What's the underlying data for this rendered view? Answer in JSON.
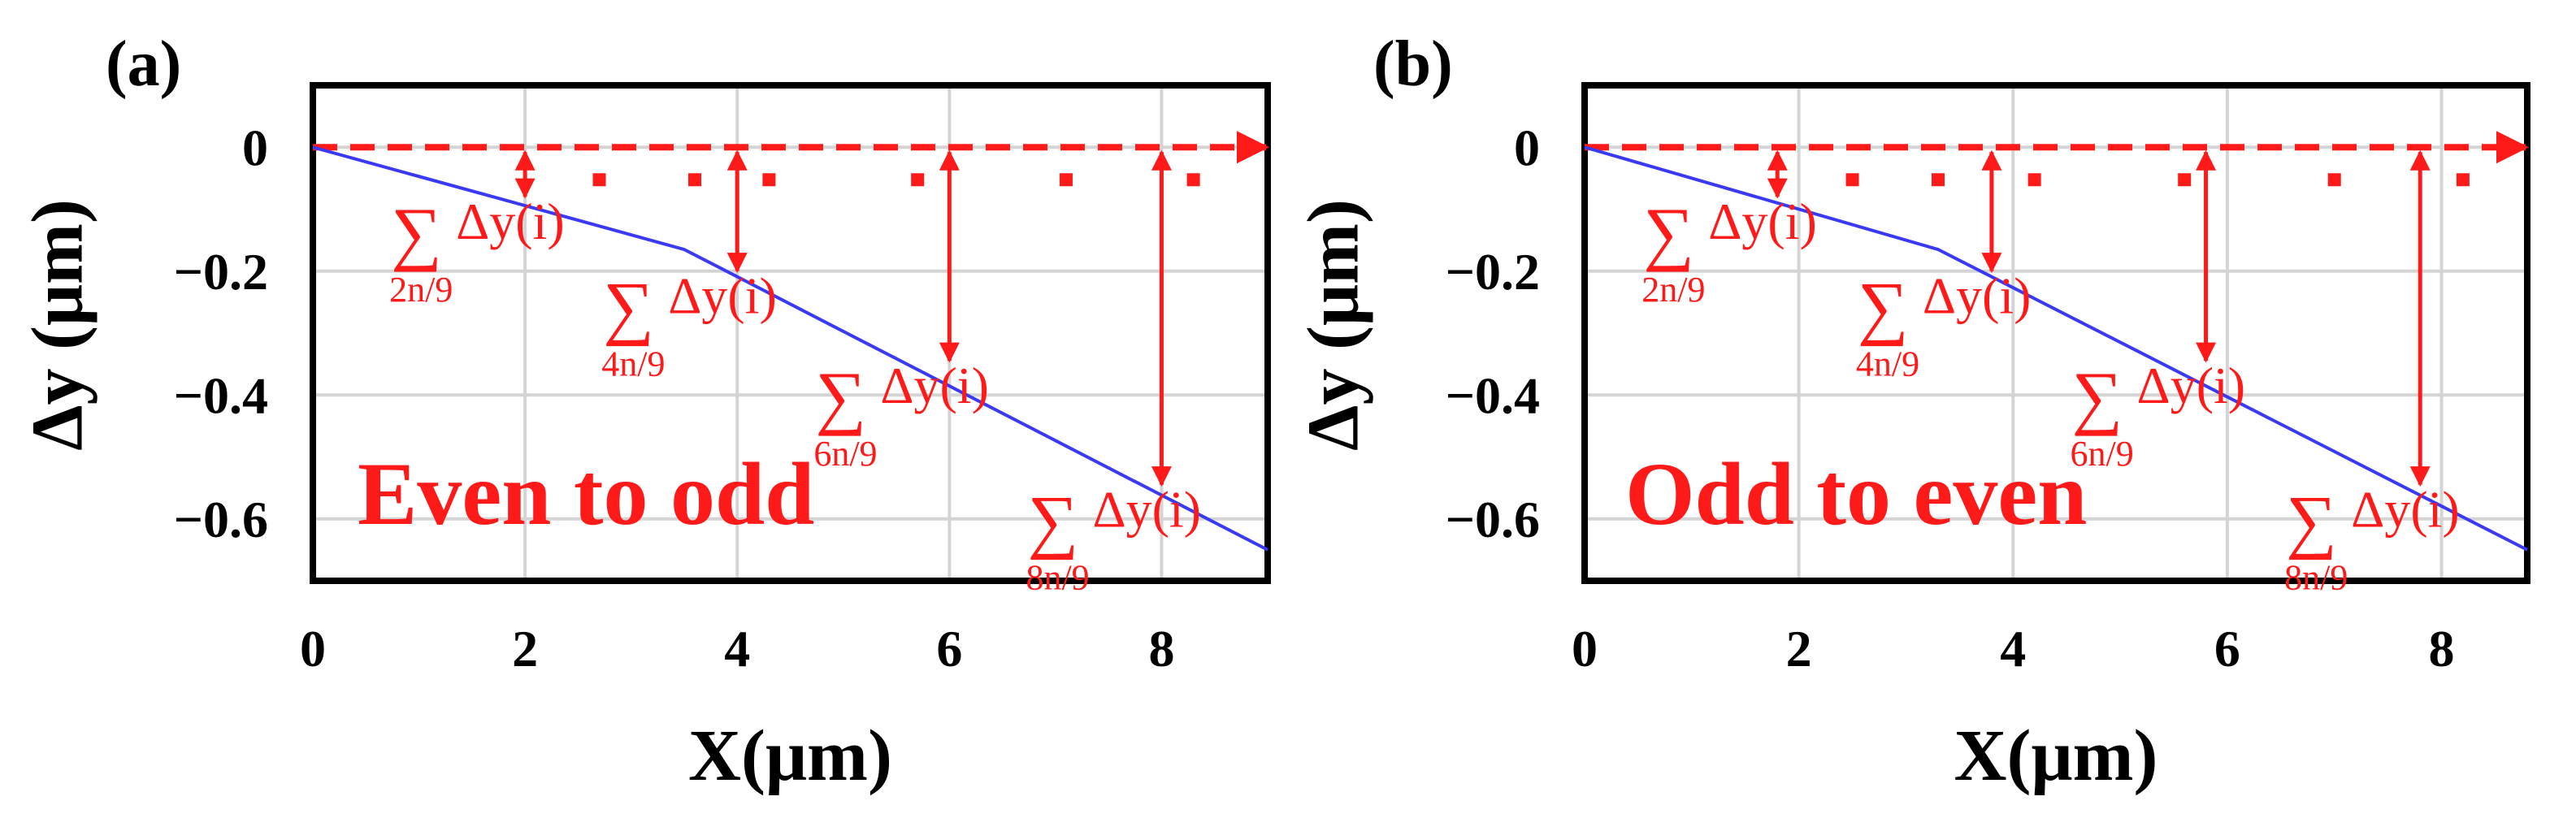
{
  "chart_data": [
    {
      "type": "line",
      "panel_label": "(a)",
      "annotation": "Even to odd",
      "xlabel": "X(μm)",
      "ylabel": "Δy (μm)",
      "xlim": [
        0,
        9
      ],
      "ylim": [
        -0.7,
        0.1
      ],
      "xticks": [
        0,
        2,
        4,
        6,
        8
      ],
      "yticks": [
        0,
        -0.2,
        -0.4,
        -0.6
      ],
      "yticklabels": [
        "0",
        "−0.2",
        "−0.4",
        "−0.6"
      ],
      "grid": true,
      "series": [
        {
          "x": [
            0,
            3.5,
            9
          ],
          "y": [
            0,
            -0.165,
            -0.65
          ]
        }
      ],
      "reference_line": {
        "y": 0
      },
      "dot_markers": [
        2.7,
        3.6,
        4.3,
        5.7,
        7.1,
        8.3
      ],
      "sum_markers": [
        {
          "x": 2,
          "y": -0.085,
          "label_main": "∑Δy(i)",
          "label_sub": "2n/9"
        },
        {
          "x": 4,
          "y": -0.205,
          "label_main": "∑Δy(i)",
          "label_sub": "4n/9"
        },
        {
          "x": 6,
          "y": -0.35,
          "label_main": "∑Δy(i)",
          "label_sub": "6n/9"
        },
        {
          "x": 8,
          "y": -0.55,
          "label_main": "∑Δy(i)",
          "label_sub": "8n/9"
        }
      ]
    },
    {
      "type": "line",
      "panel_label": "(b)",
      "annotation": "Odd to even",
      "xlabel": "X(μm)",
      "ylabel": "Δy (μm)",
      "xlim": [
        0,
        8.8
      ],
      "ylim": [
        -0.7,
        0.1
      ],
      "xticks": [
        0,
        2,
        4,
        6,
        8
      ],
      "yticks": [
        0,
        -0.2,
        -0.4,
        -0.6
      ],
      "yticklabels": [
        "0",
        "−0.2",
        "−0.4",
        "−0.6"
      ],
      "grid": true,
      "series": [
        {
          "x": [
            0,
            3.3,
            8.8
          ],
          "y": [
            0,
            -0.165,
            -0.65
          ]
        }
      ],
      "reference_line": {
        "y": 0
      },
      "dot_markers": [
        2.5,
        3.3,
        4.2,
        5.6,
        7.0,
        8.2
      ],
      "sum_markers": [
        {
          "x": 1.8,
          "y": -0.085,
          "label_main": "∑Δy(i)",
          "label_sub": "2n/9"
        },
        {
          "x": 3.8,
          "y": -0.205,
          "label_main": "∑Δy(i)",
          "label_sub": "4n/9"
        },
        {
          "x": 5.8,
          "y": -0.35,
          "label_main": "∑Δy(i)",
          "label_sub": "6n/9"
        },
        {
          "x": 7.8,
          "y": -0.55,
          "label_main": "∑Δy(i)",
          "label_sub": "8n/9"
        }
      ]
    }
  ],
  "colors": {
    "curve": "#3a3af5",
    "annotation": "#ff1a1a",
    "axes": "#000000",
    "grid": "#d4d4d4"
  }
}
